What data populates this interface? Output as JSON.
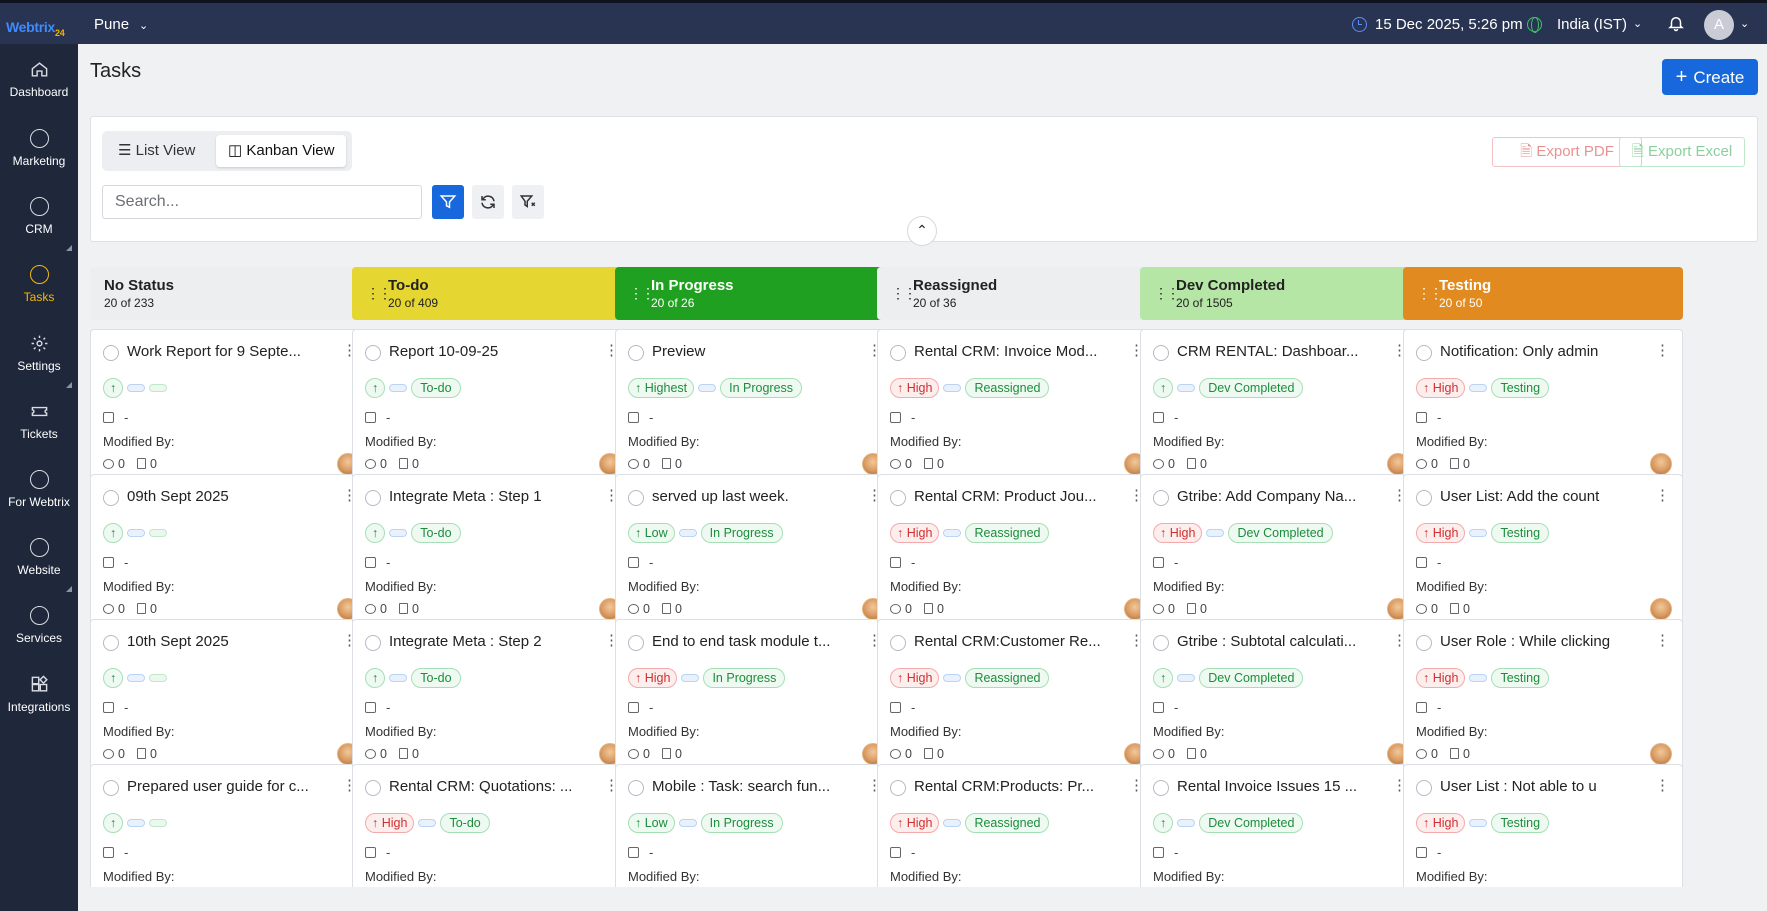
{
  "topbar": {
    "logo_main": "Webtrix",
    "logo_suffix": "24",
    "branch": "Pune",
    "datetime": "15 Dec 2025, 5:26 pm",
    "timezone": "India (IST)",
    "avatar_initial": "A"
  },
  "sidebar": {
    "items": [
      {
        "label": "Dashboard",
        "icon": "home-icon"
      },
      {
        "label": "Marketing",
        "icon": "circle-icon"
      },
      {
        "label": "CRM",
        "icon": "circle-icon"
      },
      {
        "label": "Tasks",
        "icon": "circle-icon"
      },
      {
        "label": "Settings",
        "icon": "gear-icon"
      },
      {
        "label": "Tickets",
        "icon": "ticket-icon"
      },
      {
        "label": "For Webtrix",
        "icon": "circle-icon"
      },
      {
        "label": "Website",
        "icon": "circle-icon"
      },
      {
        "label": "Services",
        "icon": "circle-icon"
      },
      {
        "label": "Integrations",
        "icon": "grid-icon"
      }
    ],
    "active_color": "#f5b800"
  },
  "page": {
    "title": "Tasks",
    "create_label": "Create"
  },
  "toolbar": {
    "list_view": "List View",
    "kanban_view": "Kanban View",
    "export_pdf": "Export PDF",
    "export_excel": "Export Excel",
    "search_placeholder": "Search..."
  },
  "card_labels": {
    "modified_by": "Modified By:",
    "date_placeholder": "-",
    "comment_count": "0",
    "file_count": "0"
  },
  "columns": [
    {
      "name": "No Status",
      "count": "20 of 233",
      "color": "#eceef0",
      "text_color": "#222",
      "cards": [
        {
          "title": "Work Report for 9 Septe...",
          "priority": "",
          "status": ""
        },
        {
          "title": "09th Sept 2025",
          "priority": "",
          "status": ""
        },
        {
          "title": "10th Sept 2025",
          "priority": "",
          "status": ""
        },
        {
          "title": "Prepared user guide for c...",
          "priority": "",
          "status": ""
        }
      ]
    },
    {
      "name": "To-do",
      "count": "20 of 409",
      "color": "#e6d631",
      "text_color": "#222",
      "cards": [
        {
          "title": "Report 10-09-25",
          "priority": "",
          "status": "To-do"
        },
        {
          "title": "Integrate Meta : Step 1",
          "priority": "",
          "status": "To-do"
        },
        {
          "title": "Integrate Meta : Step 2",
          "priority": "",
          "status": "To-do"
        },
        {
          "title": "Rental CRM: Quotations: ...",
          "priority": "High",
          "status": "To-do"
        }
      ]
    },
    {
      "name": "In Progress",
      "count": "20 of 26",
      "color": "#20a020",
      "text_color": "#fff",
      "cards": [
        {
          "title": "Preview",
          "priority": "Highest",
          "status": "In Progress"
        },
        {
          "title": "served up last week.",
          "priority": "Low",
          "status": "In Progress"
        },
        {
          "title": "End to end task module t...",
          "priority": "High",
          "status": "In Progress"
        },
        {
          "title": "Mobile : Task: search fun...",
          "priority": "Low",
          "status": "In Progress"
        }
      ]
    },
    {
      "name": "Reassigned",
      "count": "20 of 36",
      "color": "#eceef0",
      "text_color": "#222",
      "cards": [
        {
          "title": "Rental CRM: Invoice Mod...",
          "priority": "High",
          "status": "Reassigned"
        },
        {
          "title": "Rental CRM: Product Jou...",
          "priority": "High",
          "status": "Reassigned"
        },
        {
          "title": "Rental CRM:Customer Re...",
          "priority": "High",
          "status": "Reassigned"
        },
        {
          "title": "Rental CRM:Products: Pr...",
          "priority": "High",
          "status": "Reassigned"
        }
      ]
    },
    {
      "name": "Dev Completed",
      "count": "20 of 1505",
      "color": "#b5e6a6",
      "text_color": "#222",
      "cards": [
        {
          "title": "CRM RENTAL: Dashboar...",
          "priority": "",
          "status": "Dev Completed"
        },
        {
          "title": "Gtribe: Add Company Na...",
          "priority": "High",
          "status": "Dev Completed"
        },
        {
          "title": "Gtribe : Subtotal calculati...",
          "priority": "",
          "status": "Dev Completed"
        },
        {
          "title": "Rental Invoice Issues 15 ...",
          "priority": "",
          "status": "Dev Completed"
        }
      ]
    },
    {
      "name": "Testing",
      "count": "20 of 50",
      "color": "#e08a1f",
      "text_color": "#fff",
      "cards": [
        {
          "title": "Notification: Only admin",
          "priority": "High",
          "status": "Testing"
        },
        {
          "title": "User List: Add the count",
          "priority": "High",
          "status": "Testing"
        },
        {
          "title": "User Role : While clicking",
          "priority": "High",
          "status": "Testing"
        },
        {
          "title": "User List : Not able to u",
          "priority": "High",
          "status": "Testing"
        }
      ]
    }
  ]
}
